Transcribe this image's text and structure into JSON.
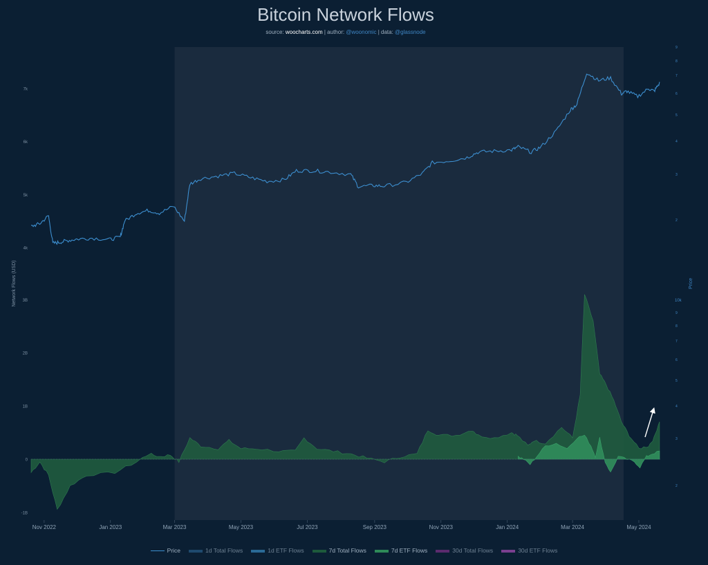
{
  "header": {
    "title": "Bitcoin Network Flows",
    "subtitle_source_label": "source:",
    "subtitle_source": "woocharts.com",
    "subtitle_author_label": "| author:",
    "subtitle_author": "@woonomic",
    "subtitle_data_label": "| data:",
    "subtitle_data": "@glassnode"
  },
  "chart_data": {
    "type": "line",
    "title": "Bitcoin Network Flows",
    "ylabel_left": "Network Flows (USD)",
    "ylabel_right": "Price",
    "x_tick_labels": [
      "Nov 2022",
      "Jan 2023",
      "Mar 2023",
      "May 2023",
      "Jul 2023",
      "Sep 2023",
      "Nov 2023",
      "Jan 2024",
      "Mar 2024",
      "May 2024"
    ],
    "x_range": [
      "2022-10-20",
      "2024-05-22"
    ],
    "highlight_range": [
      "2023-03-01",
      "2024-04-17"
    ],
    "flows_axis": {
      "range": [
        -1.08,
        3.6
      ],
      "ticks": [
        -1,
        0,
        1,
        2,
        3
      ],
      "tick_labels": [
        "-1B",
        "0",
        "1B",
        "2B",
        "3B"
      ]
    },
    "price_axis_upper": {
      "ticks": [
        40,
        50,
        60,
        70
      ],
      "tick_labels": [
        "4k",
        "5k",
        "6k",
        "7k"
      ],
      "minor_ticks": [
        1,
        2,
        3,
        4,
        5,
        6,
        7,
        8,
        9
      ]
    },
    "price_axis_lower": {
      "labeled_tick": "10k",
      "minor_ticks": [
        9,
        8,
        7,
        6,
        5,
        4,
        3,
        2
      ]
    },
    "price_series": {
      "name": "Price",
      "units": "thousand USD",
      "x": [
        "2022-10-20",
        "2022-10-28",
        "2022-11-05",
        "2022-11-09",
        "2022-11-15",
        "2022-11-22",
        "2022-12-01",
        "2022-12-15",
        "2022-12-31",
        "2023-01-10",
        "2023-01-14",
        "2023-01-25",
        "2023-02-05",
        "2023-02-15",
        "2023-02-28",
        "2023-03-10",
        "2023-03-15",
        "2023-03-25",
        "2023-04-10",
        "2023-04-25",
        "2023-05-10",
        "2023-05-25",
        "2023-06-10",
        "2023-06-21",
        "2023-07-05",
        "2023-07-20",
        "2023-08-10",
        "2023-08-17",
        "2023-08-31",
        "2023-09-10",
        "2023-09-30",
        "2023-10-15",
        "2023-10-24",
        "2023-11-10",
        "2023-11-25",
        "2023-12-05",
        "2023-12-20",
        "2024-01-05",
        "2024-01-11",
        "2024-01-23",
        "2024-02-01",
        "2024-02-15",
        "2024-02-28",
        "2024-03-05",
        "2024-03-14",
        "2024-03-25",
        "2024-04-05",
        "2024-04-15",
        "2024-04-20",
        "2024-04-30",
        "2024-05-10",
        "2024-05-15",
        "2024-05-20"
      ],
      "values": [
        44.0,
        44.5,
        46.0,
        40.8,
        41.0,
        41.3,
        41.6,
        41.8,
        41.5,
        42.0,
        45.0,
        46.5,
        47.0,
        46.5,
        47.8,
        45.0,
        52.0,
        53.0,
        53.5,
        54.0,
        53.2,
        52.5,
        52.8,
        54.5,
        54.5,
        54.3,
        53.8,
        51.5,
        51.7,
        51.6,
        52.3,
        54.0,
        56.0,
        56.4,
        57.0,
        58.0,
        58.2,
        58.4,
        59.0,
        58.0,
        59.0,
        62.0,
        66.0,
        67.0,
        73.0,
        71.5,
        72.0,
        69.0,
        69.5,
        68.5,
        70.0,
        69.5,
        71.0
      ]
    },
    "total_flows_7d": {
      "name": "7d Total Flows",
      "units": "billion USD",
      "x": [
        "2022-10-20",
        "2022-10-28",
        "2022-11-05",
        "2022-11-13",
        "2022-11-25",
        "2022-12-10",
        "2023-01-05",
        "2023-01-25",
        "2023-02-05",
        "2023-02-15",
        "2023-02-25",
        "2023-03-05",
        "2023-03-15",
        "2023-03-25",
        "2023-04-10",
        "2023-04-20",
        "2023-05-01",
        "2023-05-15",
        "2023-06-05",
        "2023-06-20",
        "2023-06-28",
        "2023-07-10",
        "2023-07-25",
        "2023-08-10",
        "2023-08-25",
        "2023-09-10",
        "2023-09-25",
        "2023-10-10",
        "2023-10-20",
        "2023-10-30",
        "2023-11-15",
        "2023-11-30",
        "2023-12-05",
        "2023-12-20",
        "2024-01-05",
        "2024-01-10",
        "2024-01-20",
        "2024-01-25",
        "2024-02-05",
        "2024-02-20",
        "2024-03-01",
        "2024-03-08",
        "2024-03-12",
        "2024-03-20",
        "2024-03-26",
        "2024-04-01",
        "2024-04-08",
        "2024-04-15",
        "2024-04-22",
        "2024-05-01",
        "2024-05-10",
        "2024-05-15",
        "2024-05-20"
      ],
      "values": [
        -0.25,
        -0.05,
        -0.3,
        -0.95,
        -0.5,
        -0.3,
        -0.25,
        -0.05,
        0.1,
        0.05,
        0.08,
        -0.05,
        0.4,
        0.25,
        0.2,
        0.35,
        0.2,
        0.2,
        0.15,
        0.15,
        0.4,
        0.2,
        0.15,
        0.1,
        0.02,
        -0.05,
        0.05,
        0.1,
        0.55,
        0.45,
        0.45,
        0.55,
        0.45,
        0.4,
        0.5,
        0.45,
        0.25,
        0.35,
        0.3,
        0.6,
        0.4,
        1.2,
        3.1,
        2.6,
        1.6,
        1.4,
        1.1,
        0.7,
        0.45,
        0.2,
        0.25,
        0.4,
        0.72
      ]
    },
    "etf_flows_7d": {
      "name": "7d ETF Flows",
      "units": "billion USD",
      "x": [
        "2024-01-11",
        "2024-01-16",
        "2024-01-22",
        "2024-01-28",
        "2024-02-05",
        "2024-02-15",
        "2024-02-25",
        "2024-03-05",
        "2024-03-12",
        "2024-03-18",
        "2024-03-22",
        "2024-03-26",
        "2024-03-31",
        "2024-04-05",
        "2024-04-12",
        "2024-04-20",
        "2024-04-27",
        "2024-05-02",
        "2024-05-08",
        "2024-05-13",
        "2024-05-20"
      ],
      "values": [
        0.05,
        0.0,
        -0.1,
        0.05,
        0.25,
        0.3,
        0.2,
        0.4,
        0.45,
        0.25,
        0.05,
        0.4,
        -0.05,
        -0.25,
        0.05,
        0.0,
        -0.05,
        -0.15,
        0.05,
        0.1,
        0.15
      ]
    },
    "legend": {
      "position": "bottom-center",
      "items": [
        {
          "label": "Price",
          "color": "#3d8fd0",
          "enabled": true
        },
        {
          "label": "1d Total Flows",
          "color": "#1e4a6e",
          "enabled": false
        },
        {
          "label": "1d ETF Flows",
          "color": "#2a6a96",
          "enabled": false
        },
        {
          "label": "7d Total Flows",
          "color": "#1d5a3c",
          "enabled": true
        },
        {
          "label": "7d ETF Flows",
          "color": "#2e8a58",
          "enabled": true
        },
        {
          "label": "30d Total Flows",
          "color": "#5b2b6e",
          "enabled": false
        },
        {
          "label": "30d ETF Flows",
          "color": "#7a3f8f",
          "enabled": false
        }
      ]
    },
    "annotations": [
      "arrow-up"
    ]
  },
  "colors": {
    "background": "#0b1f33",
    "highlight_band": "#1a2b3e",
    "price_line": "#3d8fd0",
    "total_flows_fill": "#1f5a3e",
    "etf_flows_fill": "#2f8a5a"
  }
}
